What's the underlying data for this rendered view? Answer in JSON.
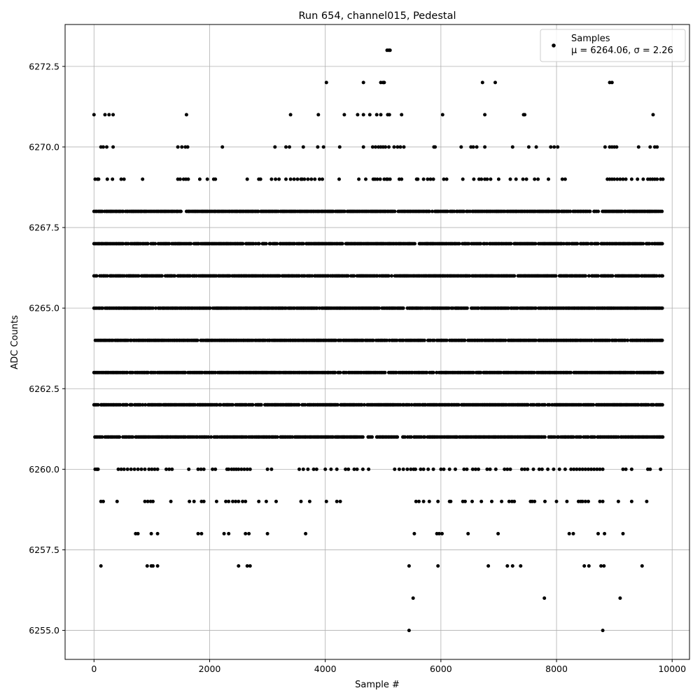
{
  "chart_data": {
    "type": "scatter",
    "title": "Run 654, channel015, Pedestal",
    "xlabel": "Sample #",
    "ylabel": "ADC Counts",
    "xlim": [
      -500,
      10300
    ],
    "ylim": [
      6254.1,
      6273.8
    ],
    "xticks": [
      0,
      2000,
      4000,
      6000,
      8000,
      10000
    ],
    "xtick_labels": [
      "0",
      "2000",
      "4000",
      "6000",
      "8000",
      "10000"
    ],
    "yticks": [
      6255.0,
      6257.5,
      6260.0,
      6262.5,
      6265.0,
      6267.5,
      6270.0,
      6272.5
    ],
    "ytick_labels": [
      "6255.0",
      "6257.5",
      "6260.0",
      "6262.5",
      "6265.0",
      "6267.5",
      "6270.0",
      "6272.5"
    ],
    "grid": true,
    "legend_position": "top-right",
    "series": [
      {
        "name": "Samples",
        "stat_label": "μ = 6264.06, σ = 2.26",
        "color": "#000000",
        "marker": "circle",
        "n_samples": 9850,
        "x_range": [
          0,
          9849
        ],
        "dense_levels": [
          {
            "y": 6261,
            "x_range": [
              0,
              9849
            ]
          },
          {
            "y": 6262,
            "x_range": [
              0,
              9849
            ]
          },
          {
            "y": 6263,
            "x_range": [
              0,
              9849
            ]
          },
          {
            "y": 6264,
            "x_range": [
              0,
              9849
            ]
          },
          {
            "y": 6265,
            "x_range": [
              0,
              9849
            ]
          },
          {
            "y": 6266,
            "x_range": [
              0,
              9849
            ]
          },
          {
            "y": 6267,
            "x_range": [
              0,
              9849
            ]
          },
          {
            "y": 6268,
            "x_range": [
              0,
              9849
            ]
          }
        ],
        "sparse_levels": [
          {
            "y": 6260,
            "x": [
              20,
              45,
              60,
              70,
              420,
              470,
              520,
              580,
              640,
              700,
              760,
              820,
              880,
              950,
              1000,
              1050,
              1100,
              1250,
              1300,
              1350,
              1640,
              1800,
              1850,
              1900,
              2050,
              2100,
              2300,
              2330,
              2380,
              2420,
              2460,
              2500,
              2550,
              2600,
              2650,
              2700,
              3000,
              3070,
              3550,
              3620,
              3700,
              3800,
              3850,
              4000,
              4100,
              4200,
              4350,
              4400,
              4500,
              4550,
              4650,
              4750,
              5200,
              5280,
              5350,
              5420,
              5480,
              5530,
              5560,
              5650,
              5700,
              5780,
              5870,
              6000,
              6050,
              6150,
              6250,
              6400,
              6450,
              6550,
              6600,
              6650,
              6800,
              6850,
              6950,
              7100,
              7150,
              7200,
              7400,
              7450,
              7500,
              7600,
              7700,
              7750,
              7850,
              7950,
              8050,
              8150,
              8250,
              8300,
              8350,
              8400,
              8450,
              8500,
              8550,
              8600,
              8650,
              8700,
              8750,
              8800,
              9150,
              9200,
              9300,
              9580,
              9620,
              9800
            ]
          },
          {
            "y": 6259,
            "x": [
              120,
              160,
              400,
              880,
              930,
              980,
              1020,
              1330,
              1650,
              1730,
              1860,
              1900,
              2120,
              2280,
              2330,
              2400,
              2450,
              2500,
              2570,
              2620,
              2850,
              2980,
              3150,
              3580,
              3730,
              4020,
              4200,
              4260,
              5570,
              5620,
              5700,
              5800,
              5950,
              6150,
              6170,
              6380,
              6420,
              6540,
              6700,
              6880,
              7050,
              7180,
              7230,
              7270,
              7550,
              7580,
              7620,
              7800,
              8000,
              8180,
              8380,
              8420,
              8450,
              8500,
              8550,
              8750,
              8800,
              9070,
              9300,
              9560
            ]
          },
          {
            "y": 6258,
            "x": [
              720,
              760,
              990,
              1100,
              1800,
              1860,
              2250,
              2330,
              2620,
              2680,
              3000,
              3660,
              5540,
              5930,
              5970,
              6020,
              6470,
              6990,
              8220,
              8290,
              8720,
              8830,
              9150
            ]
          },
          {
            "y": 6257,
            "x": [
              120,
              920,
              990,
              1020,
              1100,
              2500,
              2650,
              2700,
              5450,
              5950,
              6820,
              7150,
              7240,
              7380,
              8480,
              8560,
              8770,
              8820,
              9480
            ]
          },
          {
            "y": 6256,
            "x": [
              5520,
              7790,
              9100
            ]
          },
          {
            "y": 6255,
            "x": [
              5450,
              8800
            ]
          },
          {
            "y": 6269,
            "x": [
              20,
              60,
              80,
              230,
              320,
              470,
              520,
              840,
              1450,
              1490,
              1550,
              1590,
              1630,
              1830,
              1960,
              2070,
              2100,
              2650,
              2850,
              2880,
              3070,
              3140,
              3200,
              3320,
              3400,
              3460,
              3520,
              3580,
              3600,
              3640,
              3700,
              3760,
              3820,
              3900,
              3950,
              4240,
              4580,
              4700,
              4830,
              4860,
              4900,
              4950,
              5020,
              5060,
              5080,
              5120,
              5280,
              5320,
              5580,
              5600,
              5700,
              5770,
              5820,
              5870,
              6050,
              6100,
              6380,
              6570,
              6660,
              6700,
              6760,
              6800,
              6860,
              7000,
              7200,
              7300,
              7420,
              7480,
              7620,
              7680,
              7860,
              8100,
              8150,
              8880,
              8920,
              8960,
              9000,
              9050,
              9100,
              9150,
              9200,
              9300,
              9400,
              9500,
              9580,
              9620,
              9660,
              9700,
              9740,
              9800,
              9840
            ]
          },
          {
            "y": 6270,
            "x": [
              120,
              160,
              220,
              330,
              1450,
              1520,
              1580,
              1620,
              2220,
              3130,
              3320,
              3380,
              3620,
              3870,
              3970,
              4250,
              4660,
              4820,
              4870,
              4920,
              4960,
              5000,
              5040,
              5100,
              5190,
              5250,
              5300,
              5360,
              5880,
              5900,
              6350,
              6520,
              6560,
              6620,
              6760,
              7240,
              7520,
              7650,
              7900,
              7960,
              8020,
              8840,
              8920,
              8960,
              9000,
              9040,
              9420,
              9620,
              9700,
              9740
            ]
          },
          {
            "y": 6271,
            "x": [
              0,
              190,
              260,
              330,
              1600,
              3400,
              3880,
              4330,
              4560,
              4660,
              4770,
              4890,
              4960,
              5080,
              5110,
              5320,
              6030,
              6760,
              7430,
              7450,
              9670
            ]
          },
          {
            "y": 6272,
            "x": [
              4020,
              4660,
              4960,
              5000,
              5020,
              6720,
              6940,
              8920,
              8960
            ]
          },
          {
            "y": 6273,
            "x": [
              5070,
              5100,
              5120
            ]
          }
        ]
      }
    ]
  }
}
